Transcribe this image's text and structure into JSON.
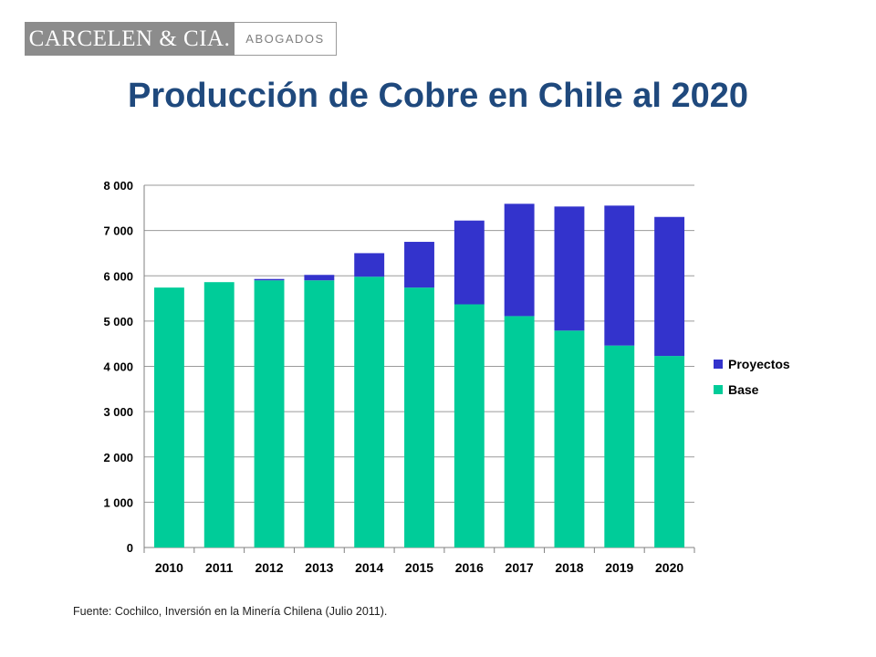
{
  "logo": {
    "name": "CARCELEN & CIA.",
    "subtitle": "ABOGADOS"
  },
  "title": "Producción de Cobre en Chile al 2020",
  "source": "Fuente: Cochilco, Inversión en la Minería Chilena (Julio 2011).",
  "chart_data": {
    "type": "bar",
    "stacked": true,
    "categories": [
      "2010",
      "2011",
      "2012",
      "2013",
      "2014",
      "2015",
      "2016",
      "2017",
      "2018",
      "2019",
      "2020"
    ],
    "series": [
      {
        "name": "Base",
        "color": "#00cc99",
        "values": [
          5740,
          5860,
          5900,
          5900,
          5980,
          5740,
          5370,
          5110,
          4790,
          4460,
          4230
        ]
      },
      {
        "name": "Proyectos",
        "color": "#3333cc",
        "values": [
          0,
          0,
          30,
          120,
          520,
          1010,
          1850,
          2480,
          2740,
          3090,
          3070
        ]
      }
    ],
    "ylim": [
      0,
      8000
    ],
    "yticks": [
      0,
      1000,
      2000,
      3000,
      4000,
      5000,
      6000,
      7000,
      8000
    ],
    "ytick_labels": [
      "0",
      "1 000",
      "2 000",
      "3 000",
      "4 000",
      "5 000",
      "6 000",
      "7 000",
      "8 000"
    ],
    "legend": [
      "Proyectos",
      "Base"
    ],
    "legend_position": "right",
    "grid": true
  }
}
